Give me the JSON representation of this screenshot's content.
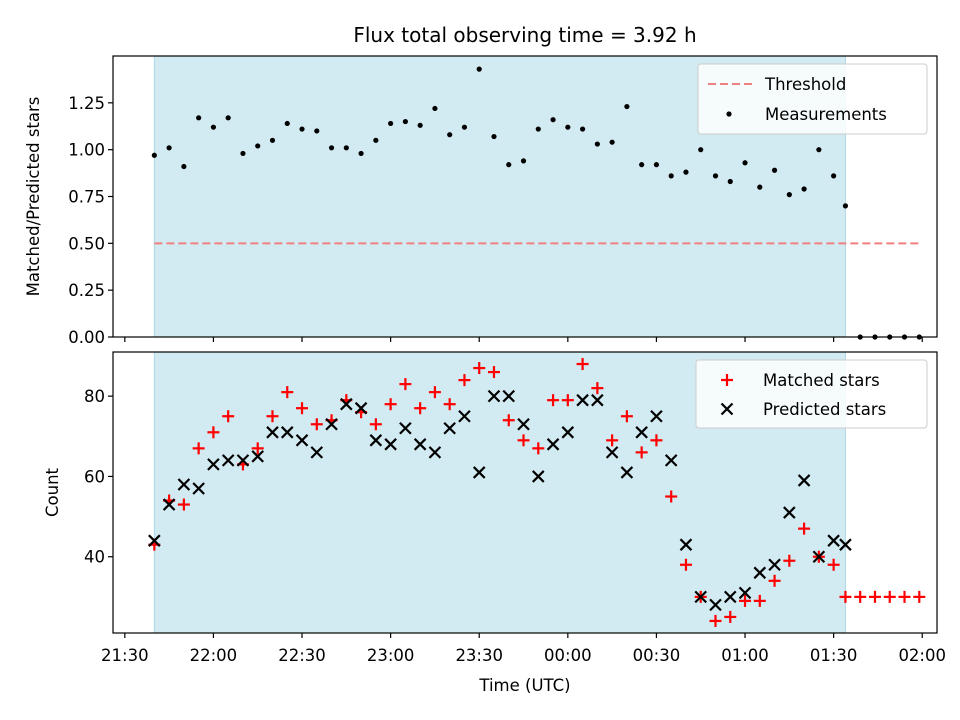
{
  "chart_data": [
    {
      "type": "scatter",
      "title": "Flux total observing time = 3.92 h",
      "xlabel": "",
      "ylabel": "Matched/Predicted stars",
      "xlim": [
        "21:26",
        "02:05"
      ],
      "ylim": [
        0,
        1.5
      ],
      "yticks": [
        0.0,
        0.25,
        0.5,
        0.75,
        1.0,
        1.25
      ],
      "ytick_labels": [
        "0.00",
        "0.25",
        "0.50",
        "0.75",
        "1.00",
        "1.25"
      ],
      "shaded_span": {
        "start": "21:40",
        "end": "01:34",
        "color": "#add8e6"
      },
      "legend": {
        "position": "top-right",
        "entries": [
          "Threshold",
          "Measurements"
        ]
      },
      "threshold": {
        "name": "Threshold",
        "value": 0.5,
        "x_start": "21:40",
        "x_end": "01:59",
        "color": "#f08080",
        "style": "dashed"
      },
      "series": [
        {
          "name": "Measurements",
          "color": "#000000",
          "marker": "dot",
          "x": [
            "21:40",
            "21:45",
            "21:50",
            "21:55",
            "22:00",
            "22:05",
            "22:10",
            "22:15",
            "22:20",
            "22:25",
            "22:30",
            "22:35",
            "22:40",
            "22:45",
            "22:50",
            "22:55",
            "23:00",
            "23:05",
            "23:10",
            "23:15",
            "23:20",
            "23:25",
            "23:30",
            "23:35",
            "23:40",
            "23:45",
            "23:50",
            "23:55",
            "00:00",
            "00:05",
            "00:10",
            "00:15",
            "00:20",
            "00:25",
            "00:30",
            "00:35",
            "00:40",
            "00:45",
            "00:50",
            "00:55",
            "01:00",
            "01:05",
            "01:10",
            "01:15",
            "01:20",
            "01:25",
            "01:30",
            "01:34",
            "01:39",
            "01:44",
            "01:49",
            "01:54",
            "01:59"
          ],
          "y": [
            0.97,
            1.01,
            0.91,
            1.17,
            1.12,
            1.17,
            0.98,
            1.02,
            1.05,
            1.14,
            1.11,
            1.1,
            1.01,
            1.01,
            0.98,
            1.05,
            1.14,
            1.15,
            1.13,
            1.22,
            1.08,
            1.12,
            1.43,
            1.07,
            0.92,
            0.94,
            1.11,
            1.16,
            1.12,
            1.11,
            1.03,
            1.04,
            1.23,
            0.92,
            0.92,
            0.86,
            0.88,
            1.0,
            0.86,
            0.83,
            0.93,
            0.8,
            0.89,
            0.76,
            0.79,
            1.0,
            0.86,
            0.7,
            0.0,
            0.0,
            0.0,
            0.0,
            0.0
          ]
        }
      ]
    },
    {
      "type": "scatter",
      "title": "",
      "xlabel": "Time (UTC)",
      "ylabel": "Count",
      "xlim": [
        "21:26",
        "02:05"
      ],
      "ylim": [
        21,
        91
      ],
      "yticks": [
        40,
        60,
        80
      ],
      "xticks": [
        "21:30",
        "22:00",
        "22:30",
        "23:00",
        "23:30",
        "00:00",
        "00:30",
        "01:00",
        "01:30",
        "02:00"
      ],
      "shaded_span": {
        "start": "21:40",
        "end": "01:34",
        "color": "#add8e6"
      },
      "legend": {
        "position": "top-right",
        "entries": [
          "Matched stars",
          "Predicted stars"
        ]
      },
      "series": [
        {
          "name": "Matched stars",
          "color": "#ff0000",
          "marker": "plus",
          "x": [
            "21:40",
            "21:45",
            "21:50",
            "21:55",
            "22:00",
            "22:05",
            "22:10",
            "22:15",
            "22:20",
            "22:25",
            "22:30",
            "22:35",
            "22:40",
            "22:45",
            "22:50",
            "22:55",
            "23:00",
            "23:05",
            "23:10",
            "23:15",
            "23:20",
            "23:25",
            "23:30",
            "23:35",
            "23:40",
            "23:45",
            "23:50",
            "23:55",
            "00:00",
            "00:05",
            "00:10",
            "00:15",
            "00:20",
            "00:25",
            "00:30",
            "00:35",
            "00:40",
            "00:45",
            "00:50",
            "00:55",
            "01:00",
            "01:05",
            "01:10",
            "01:15",
            "01:20",
            "01:25",
            "01:30",
            "01:34",
            "01:39",
            "01:44",
            "01:49",
            "01:54",
            "01:59"
          ],
          "y": [
            43,
            54,
            53,
            67,
            71,
            75,
            63,
            67,
            75,
            81,
            77,
            73,
            74,
            79,
            76,
            73,
            78,
            83,
            77,
            81,
            78,
            84,
            87,
            86,
            74,
            69,
            67,
            79,
            79,
            88,
            82,
            69,
            75,
            66,
            69,
            55,
            38,
            30,
            24,
            25,
            29,
            29,
            34,
            39,
            47,
            40,
            38,
            30,
            30,
            30,
            30,
            30,
            30
          ]
        },
        {
          "name": "Predicted stars",
          "color": "#000000",
          "marker": "x",
          "x": [
            "21:40",
            "21:45",
            "21:50",
            "21:55",
            "22:00",
            "22:05",
            "22:10",
            "22:15",
            "22:20",
            "22:25",
            "22:30",
            "22:35",
            "22:40",
            "22:45",
            "22:50",
            "22:55",
            "23:00",
            "23:05",
            "23:10",
            "23:15",
            "23:20",
            "23:25",
            "23:30",
            "23:35",
            "23:40",
            "23:45",
            "23:50",
            "23:55",
            "00:00",
            "00:05",
            "00:10",
            "00:15",
            "00:20",
            "00:25",
            "00:30",
            "00:35",
            "00:40",
            "00:45",
            "00:50",
            "00:55",
            "01:00",
            "01:05",
            "01:10",
            "01:15",
            "01:20",
            "01:25",
            "01:30",
            "01:34"
          ],
          "y": [
            44,
            53,
            58,
            57,
            63,
            64,
            64,
            65,
            71,
            71,
            69,
            66,
            73,
            78,
            77,
            69,
            68,
            72,
            68,
            66,
            72,
            75,
            61,
            80,
            80,
            73,
            60,
            68,
            71,
            79,
            79,
            66,
            61,
            71,
            75,
            64,
            43,
            30,
            28,
            30,
            31,
            36,
            38,
            51,
            59,
            40,
            44,
            43
          ]
        }
      ]
    }
  ]
}
